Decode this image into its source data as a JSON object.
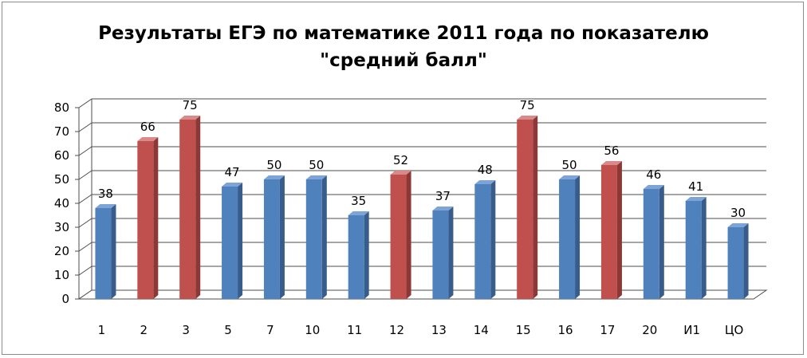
{
  "chart_data": {
    "type": "bar",
    "title": "Результаты ЕГЭ по математике 2011 года по показателю\n\"средний балл\"",
    "xlabel": "",
    "ylabel": "",
    "categories": [
      "1",
      "2",
      "3",
      "5",
      "7",
      "10",
      "11",
      "12",
      "13",
      "14",
      "15",
      "16",
      "17",
      "20",
      "И1",
      "ЦО"
    ],
    "values": [
      38,
      66,
      75,
      47,
      50,
      50,
      35,
      52,
      37,
      48,
      75,
      50,
      56,
      46,
      41,
      30
    ],
    "highlighted": [
      false,
      true,
      true,
      false,
      false,
      false,
      false,
      true,
      false,
      false,
      true,
      false,
      true,
      false,
      false,
      false
    ],
    "ylim": [
      0,
      80
    ],
    "yticks": [
      0,
      10,
      20,
      30,
      40,
      50,
      60,
      70,
      80
    ],
    "grid": true,
    "legend": "none",
    "style": "3d-column"
  },
  "colors": {
    "bar_default": "#4f81bd",
    "bar_default_side": "#385d8a",
    "bar_default_top": "#7ea3d6",
    "bar_highlight": "#c0504d",
    "bar_highlight_side": "#8c3836",
    "bar_highlight_top": "#d98987",
    "grid": "#4d4d4d"
  }
}
